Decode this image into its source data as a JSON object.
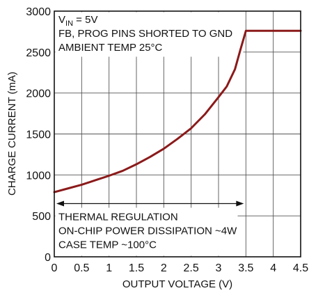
{
  "chart_data": {
    "type": "line",
    "xlabel": "OUTPUT VOLTAGE (V)",
    "ylabel": "CHARGE CURRENT (mA)",
    "xlim": [
      0,
      4.5
    ],
    "ylim": [
      0,
      3000
    ],
    "x_ticks": [
      "0",
      "0.5",
      "1",
      "1.5",
      "2",
      "2.5",
      "3",
      "3.5",
      "4",
      "4.5"
    ],
    "y_ticks": [
      "0",
      "500",
      "1000",
      "1500",
      "2000",
      "2500",
      "3000"
    ],
    "grid": true,
    "series": [
      {
        "color": "#8b1a1a",
        "x": [
          0,
          0.25,
          0.5,
          0.75,
          1.0,
          1.25,
          1.5,
          1.75,
          2.0,
          2.25,
          2.5,
          2.75,
          3.0,
          3.15,
          3.3,
          3.4,
          3.5,
          3.75,
          4.0,
          4.25,
          4.5
        ],
        "y": [
          790,
          835,
          880,
          935,
          990,
          1050,
          1130,
          1220,
          1320,
          1440,
          1570,
          1740,
          1950,
          2080,
          2290,
          2530,
          2760,
          2760,
          2760,
          2760,
          2760
        ]
      }
    ],
    "annotations": {
      "top_lines": [
        {
          "main": "V",
          "sub": "IN",
          "rest": " = 5V"
        },
        {
          "main": "FB, PROG PINS SHORTED TO GND"
        },
        {
          "main": "AMBIENT TEMP 25°C"
        }
      ],
      "bottom_lines": [
        "THERMAL REGULATION",
        "ON-CHIP POWER DISSIPATION ~4W",
        "CASE TEMP ~100°C"
      ],
      "arrow_range": [
        0,
        3.5
      ],
      "arrow_y": 650
    }
  }
}
